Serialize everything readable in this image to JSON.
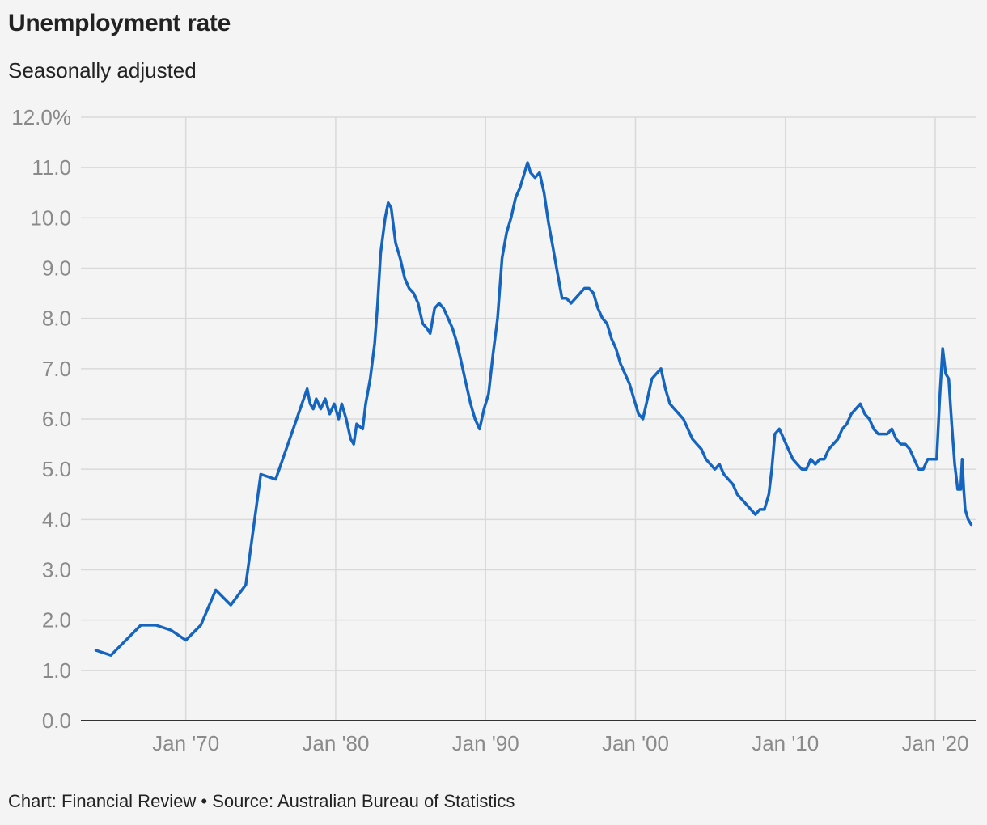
{
  "chart_data": {
    "type": "line",
    "title": "Unemployment rate",
    "subtitle": "Seasonally adjusted",
    "source": "Chart: Financial Review • Source: Australian Bureau of Statistics",
    "xlim": [
      1963,
      2022.7
    ],
    "ylim": [
      0,
      12
    ],
    "y_ticks": [
      0,
      1,
      2,
      3,
      4,
      5,
      6,
      7,
      8,
      9,
      10,
      11,
      12
    ],
    "y_tick_labels": [
      "0.0",
      "1.0",
      "2.0",
      "3.0",
      "4.0",
      "5.0",
      "6.0",
      "7.0",
      "8.0",
      "9.0",
      "10.0",
      "11.0",
      "12.0%"
    ],
    "x_ticks": [
      1970,
      1980,
      1990,
      2000,
      2010,
      2020
    ],
    "x_tick_labels": [
      "Jan '70",
      "Jan '80",
      "Jan '90",
      "Jan '00",
      "Jan '10",
      "Jan '20"
    ],
    "grid": true,
    "line_color": "#1565c0",
    "series": [
      {
        "name": "",
        "points": [
          [
            1964.0,
            1.4
          ],
          [
            1965.0,
            1.3
          ],
          [
            1967.0,
            1.9
          ],
          [
            1968.0,
            1.9
          ],
          [
            1969.0,
            1.8
          ],
          [
            1970.0,
            1.6
          ],
          [
            1971.0,
            1.9
          ],
          [
            1972.0,
            2.6
          ],
          [
            1973.0,
            2.3
          ],
          [
            1974.0,
            2.7
          ],
          [
            1975.0,
            4.9
          ],
          [
            1976.0,
            4.8
          ],
          [
            1978.1,
            6.6
          ],
          [
            1978.3,
            6.3
          ],
          [
            1978.5,
            6.2
          ],
          [
            1978.7,
            6.4
          ],
          [
            1979.0,
            6.2
          ],
          [
            1979.3,
            6.4
          ],
          [
            1979.6,
            6.1
          ],
          [
            1979.9,
            6.3
          ],
          [
            1980.2,
            6.0
          ],
          [
            1980.4,
            6.3
          ],
          [
            1980.7,
            6.0
          ],
          [
            1981.0,
            5.6
          ],
          [
            1981.2,
            5.5
          ],
          [
            1981.4,
            5.9
          ],
          [
            1981.8,
            5.8
          ],
          [
            1982.0,
            6.3
          ],
          [
            1982.3,
            6.8
          ],
          [
            1982.6,
            7.5
          ],
          [
            1982.8,
            8.3
          ],
          [
            1983.0,
            9.3
          ],
          [
            1983.3,
            10.0
          ],
          [
            1983.5,
            10.3
          ],
          [
            1983.7,
            10.2
          ],
          [
            1984.0,
            9.5
          ],
          [
            1984.3,
            9.2
          ],
          [
            1984.6,
            8.8
          ],
          [
            1984.9,
            8.6
          ],
          [
            1985.2,
            8.5
          ],
          [
            1985.5,
            8.3
          ],
          [
            1985.8,
            7.9
          ],
          [
            1986.1,
            7.8
          ],
          [
            1986.3,
            7.7
          ],
          [
            1986.6,
            8.2
          ],
          [
            1986.9,
            8.3
          ],
          [
            1987.2,
            8.2
          ],
          [
            1987.5,
            8.0
          ],
          [
            1987.8,
            7.8
          ],
          [
            1988.1,
            7.5
          ],
          [
            1988.4,
            7.1
          ],
          [
            1988.7,
            6.7
          ],
          [
            1989.0,
            6.3
          ],
          [
            1989.3,
            6.0
          ],
          [
            1989.6,
            5.8
          ],
          [
            1989.9,
            6.2
          ],
          [
            1990.2,
            6.5
          ],
          [
            1990.5,
            7.3
          ],
          [
            1990.8,
            8.0
          ],
          [
            1991.1,
            9.2
          ],
          [
            1991.4,
            9.7
          ],
          [
            1991.7,
            10.0
          ],
          [
            1992.0,
            10.4
          ],
          [
            1992.3,
            10.6
          ],
          [
            1992.5,
            10.8
          ],
          [
            1992.8,
            11.1
          ],
          [
            1993.0,
            10.9
          ],
          [
            1993.3,
            10.8
          ],
          [
            1993.6,
            10.9
          ],
          [
            1993.9,
            10.5
          ],
          [
            1994.2,
            9.9
          ],
          [
            1994.5,
            9.4
          ],
          [
            1994.8,
            8.9
          ],
          [
            1995.1,
            8.4
          ],
          [
            1995.4,
            8.4
          ],
          [
            1995.7,
            8.3
          ],
          [
            1996.0,
            8.4
          ],
          [
            1996.3,
            8.5
          ],
          [
            1996.6,
            8.6
          ],
          [
            1996.9,
            8.6
          ],
          [
            1997.2,
            8.5
          ],
          [
            1997.5,
            8.2
          ],
          [
            1997.8,
            8.0
          ],
          [
            1998.1,
            7.9
          ],
          [
            1998.4,
            7.6
          ],
          [
            1998.7,
            7.4
          ],
          [
            1999.0,
            7.1
          ],
          [
            1999.3,
            6.9
          ],
          [
            1999.6,
            6.7
          ],
          [
            1999.9,
            6.4
          ],
          [
            2000.2,
            6.1
          ],
          [
            2000.5,
            6.0
          ],
          [
            2000.8,
            6.4
          ],
          [
            2001.1,
            6.8
          ],
          [
            2001.4,
            6.9
          ],
          [
            2001.7,
            7.0
          ],
          [
            2002.0,
            6.6
          ],
          [
            2002.3,
            6.3
          ],
          [
            2002.6,
            6.2
          ],
          [
            2002.9,
            6.1
          ],
          [
            2003.2,
            6.0
          ],
          [
            2003.5,
            5.8
          ],
          [
            2003.8,
            5.6
          ],
          [
            2004.1,
            5.5
          ],
          [
            2004.4,
            5.4
          ],
          [
            2004.7,
            5.2
          ],
          [
            2005.0,
            5.1
          ],
          [
            2005.3,
            5.0
          ],
          [
            2005.6,
            5.1
          ],
          [
            2005.9,
            4.9
          ],
          [
            2006.2,
            4.8
          ],
          [
            2006.5,
            4.7
          ],
          [
            2006.8,
            4.5
          ],
          [
            2007.1,
            4.4
          ],
          [
            2007.4,
            4.3
          ],
          [
            2007.7,
            4.2
          ],
          [
            2008.0,
            4.1
          ],
          [
            2008.3,
            4.2
          ],
          [
            2008.6,
            4.2
          ],
          [
            2008.9,
            4.5
          ],
          [
            2009.1,
            5.0
          ],
          [
            2009.3,
            5.7
          ],
          [
            2009.6,
            5.8
          ],
          [
            2009.9,
            5.6
          ],
          [
            2010.2,
            5.4
          ],
          [
            2010.5,
            5.2
          ],
          [
            2010.8,
            5.1
          ],
          [
            2011.1,
            5.0
          ],
          [
            2011.4,
            5.0
          ],
          [
            2011.7,
            5.2
          ],
          [
            2012.0,
            5.1
          ],
          [
            2012.3,
            5.2
          ],
          [
            2012.6,
            5.2
          ],
          [
            2012.9,
            5.4
          ],
          [
            2013.2,
            5.5
          ],
          [
            2013.5,
            5.6
          ],
          [
            2013.8,
            5.8
          ],
          [
            2014.1,
            5.9
          ],
          [
            2014.4,
            6.1
          ],
          [
            2014.7,
            6.2
          ],
          [
            2015.0,
            6.3
          ],
          [
            2015.3,
            6.1
          ],
          [
            2015.6,
            6.0
          ],
          [
            2015.9,
            5.8
          ],
          [
            2016.2,
            5.7
          ],
          [
            2016.5,
            5.7
          ],
          [
            2016.8,
            5.7
          ],
          [
            2017.1,
            5.8
          ],
          [
            2017.4,
            5.6
          ],
          [
            2017.7,
            5.5
          ],
          [
            2018.0,
            5.5
          ],
          [
            2018.3,
            5.4
          ],
          [
            2018.6,
            5.2
          ],
          [
            2018.9,
            5.0
          ],
          [
            2019.2,
            5.0
          ],
          [
            2019.5,
            5.2
          ],
          [
            2019.8,
            5.2
          ],
          [
            2020.1,
            5.2
          ],
          [
            2020.3,
            6.4
          ],
          [
            2020.5,
            7.4
          ],
          [
            2020.7,
            6.9
          ],
          [
            2020.9,
            6.8
          ],
          [
            2021.1,
            5.9
          ],
          [
            2021.3,
            5.1
          ],
          [
            2021.5,
            4.6
          ],
          [
            2021.7,
            4.6
          ],
          [
            2021.8,
            5.2
          ],
          [
            2021.9,
            4.6
          ],
          [
            2022.0,
            4.2
          ],
          [
            2022.2,
            4.0
          ],
          [
            2022.4,
            3.9
          ]
        ]
      }
    ]
  }
}
